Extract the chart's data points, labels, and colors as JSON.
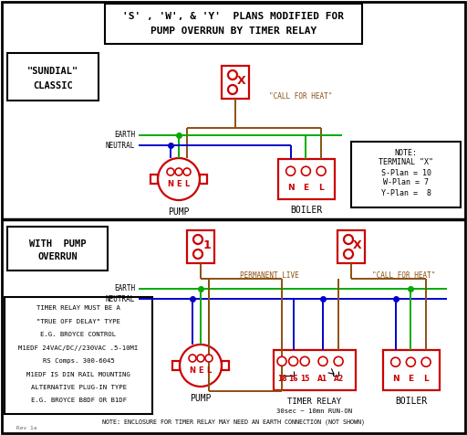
{
  "title_line1": "'S' , 'W', & 'Y'  PLANS MODIFIED FOR",
  "title_line2": "PUMP OVERRUN BY TIMER RELAY",
  "bg_color": "#ffffff",
  "red": "#cc0000",
  "green": "#00aa00",
  "blue": "#0000cc",
  "brown": "#8B5010",
  "black": "#000000",
  "gray": "#666666",
  "section1_label": "\"SUNDIAL\"\nCLASSIC",
  "section2_label": "WITH  PUMP\nOVERRUN",
  "note1_lines": [
    "NOTE:",
    "TERMINAL \"X\"",
    "S-Plan = 10",
    "W-Plan = 7",
    "Y-Plan =  8"
  ],
  "note2_lines": [
    "TIMER RELAY MUST BE A",
    "\"TRUE OFF DELAY\" TYPE",
    "E.G. BROYCE CONTROL",
    "M1EDF 24VAC/DC//230VAC .5-10MI",
    "RS Comps. 300-6045",
    "M1EDF IS DIN RAIL MOUNTING",
    "ALTERNATIVE PLUG-IN TYPE",
    "E.G. BROYCE B8DF OR B1DF"
  ],
  "footer": "NOTE: ENCLOSURE FOR TIMER RELAY MAY NEED AN EARTH CONNECTION (NOT SHOWN)",
  "timer_terminals": [
    "18",
    "16",
    "15",
    "A1",
    "A2"
  ],
  "boiler_terminals": [
    "N",
    "E",
    "L"
  ]
}
